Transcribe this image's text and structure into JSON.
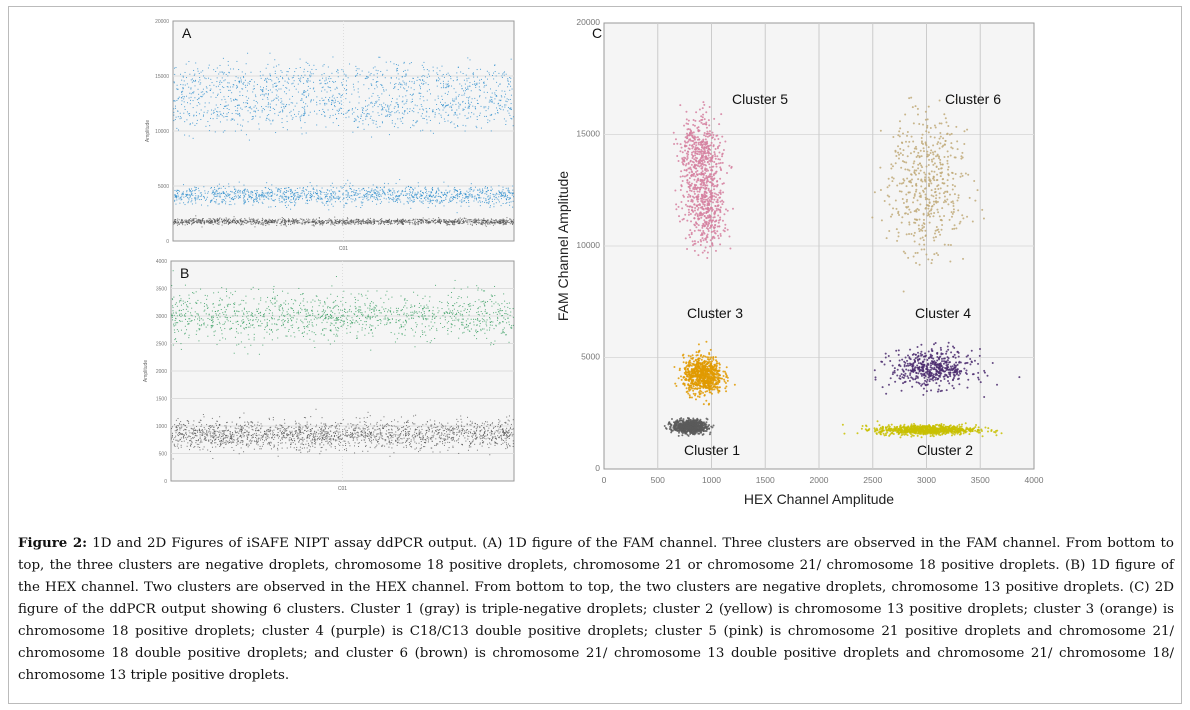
{
  "chart_data": [
    {
      "panel": "A",
      "type": "scatter",
      "ylabel": "Amplitude",
      "xlabel": "C01",
      "ylim": [
        0,
        20000
      ],
      "yticks": [
        "0",
        "5000",
        "10000",
        "15000",
        "20000"
      ],
      "grid": true,
      "series": [
        {
          "color": "#555555",
          "center": 1800
        },
        {
          "color": "#2b8ccc",
          "center": 4200
        },
        {
          "color": "#2b8ccc",
          "center": 12500
        }
      ]
    },
    {
      "panel": "B",
      "type": "scatter",
      "ylabel": "Amplitude",
      "xlabel": "C01",
      "ylim": [
        0,
        4000
      ],
      "yticks": [
        "0",
        "500",
        "1000",
        "1500",
        "2000",
        "2500",
        "3000",
        "3500",
        "4000"
      ],
      "grid": true,
      "series": [
        {
          "color": "#555555",
          "center": 850
        },
        {
          "color": "#2e9a5a",
          "center": 3000
        }
      ]
    },
    {
      "panel": "C",
      "type": "scatter",
      "xlabel": "HEX Channel Amplitude",
      "ylabel": "FAM Channel Amplitude",
      "xlim": [
        0,
        4000
      ],
      "ylim": [
        0,
        20000
      ],
      "grid": true,
      "xticks": [
        "0",
        "500",
        "1000",
        "1500",
        "2000",
        "2500",
        "3000",
        "3500",
        "4000"
      ],
      "yticks": [
        "0",
        "5000",
        "10000",
        "15000",
        "20000"
      ],
      "series": [
        {
          "name": "Cluster 1",
          "color": "#5a5a5a",
          "hex": 800,
          "fam": 1900
        },
        {
          "name": "Cluster 2",
          "color": "#c8c000",
          "hex": 3000,
          "fam": 1750
        },
        {
          "name": "Cluster 3",
          "color": "#e09a00",
          "hex": 920,
          "fam": 4200
        },
        {
          "name": "Cluster 4",
          "color": "#4b2c6e",
          "hex": 3050,
          "fam": 4500
        },
        {
          "name": "Cluster 5",
          "color": "#d57f9f",
          "hex": 950,
          "fam": 12500
        },
        {
          "name": "Cluster 6",
          "color": "#bfa978",
          "hex": 3000,
          "fam": 12500
        }
      ]
    }
  ],
  "caption": {
    "label": "Figure 2:",
    "text": " 1D and 2D Figures of iSAFE NIPT assay ddPCR output. (A) 1D figure of the FAM channel. Three clusters are observed in the FAM channel. From bottom to top, the three clusters are negative droplets, chromosome 18 positive droplets, chromosome 21 or chromosome 21/ chromosome 18 positive droplets. (B) 1D figure of the HEX channel. Two clusters are observed in the HEX channel. From bottom to top, the two clusters are negative droplets, chromosome 13 positive droplets. (C) 2D figure of the ddPCR output showing 6 clusters. Cluster 1 (gray) is triple-negative droplets; cluster 2 (yellow) is chromosome 13 positive droplets; cluster 3 (orange) is chromosome 18 positive droplets; cluster 4 (purple) is C18/C13 double positive droplets; cluster 5 (pink) is chromosome 21 positive droplets and chromosome 21/ chromosome 18 double positive droplets; and cluster 6 (brown) is chromosome 21/ chromosome 13 double positive droplets and chromosome 21/ chromosome 18/ chromosome 13 triple positive droplets."
  }
}
